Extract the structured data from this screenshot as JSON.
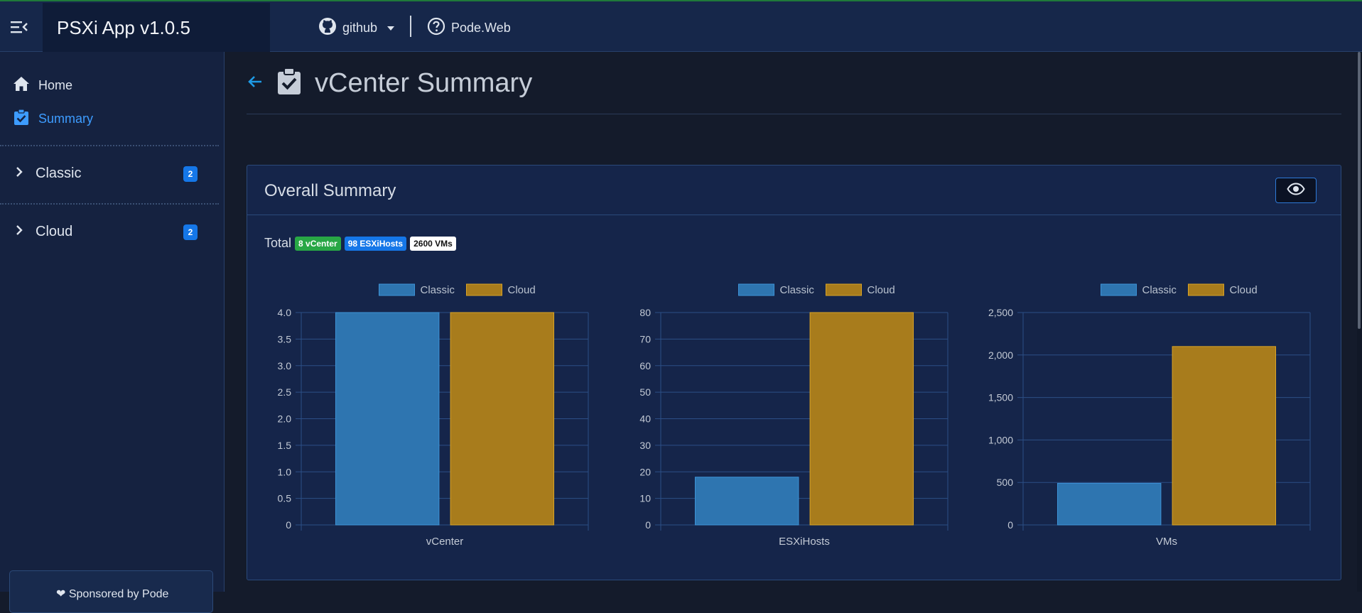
{
  "app": {
    "title": "PSXi App v1.0.5"
  },
  "navbar": {
    "links": [
      {
        "label": "github",
        "icon": "github-icon",
        "has_dropdown": true
      },
      {
        "label": "Pode.Web",
        "icon": "help-circle-icon"
      }
    ]
  },
  "sidebar": {
    "items": [
      {
        "label": "Home",
        "icon": "home-icon",
        "active": false
      },
      {
        "label": "Summary",
        "icon": "clipboard-check-icon",
        "active": true
      }
    ],
    "groups": [
      {
        "label": "Classic",
        "count": "2"
      },
      {
        "label": "Cloud",
        "count": "2"
      }
    ],
    "sponsor_text": "❤ Sponsored by Pode"
  },
  "page": {
    "title": "vCenter Summary",
    "back_icon": "arrow-left-icon",
    "title_icon": "clipboard-check-icon"
  },
  "card": {
    "title": "Overall Summary",
    "eye_icon": "eye-icon",
    "totals_label": "Total",
    "badges": [
      "8 vCenter",
      "98 ESXiHosts",
      "2600 VMs"
    ]
  },
  "colors": {
    "classic": "#2e75b0",
    "cloud": "#a87c1c",
    "accent": "#3d9cff"
  },
  "chart_data": [
    {
      "type": "bar",
      "categories": [
        "vCenter"
      ],
      "series": [
        {
          "name": "Classic",
          "values": [
            4
          ]
        },
        {
          "name": "Cloud",
          "values": [
            4
          ]
        }
      ],
      "ylim": [
        0,
        4
      ],
      "yticks": [
        "0",
        "0.5",
        "1.0",
        "1.5",
        "2.0",
        "2.5",
        "3.0",
        "3.5",
        "4.0"
      ],
      "ytick_values": [
        0,
        0.5,
        1,
        1.5,
        2,
        2.5,
        3,
        3.5,
        4
      ],
      "legend": "top",
      "grid": true
    },
    {
      "type": "bar",
      "categories": [
        "ESXiHosts"
      ],
      "series": [
        {
          "name": "Classic",
          "values": [
            18
          ]
        },
        {
          "name": "Cloud",
          "values": [
            80
          ]
        }
      ],
      "ylim": [
        0,
        80
      ],
      "yticks": [
        "0",
        "10",
        "20",
        "30",
        "40",
        "50",
        "60",
        "70",
        "80"
      ],
      "ytick_values": [
        0,
        10,
        20,
        30,
        40,
        50,
        60,
        70,
        80
      ],
      "legend": "top",
      "grid": true
    },
    {
      "type": "bar",
      "categories": [
        "VMs"
      ],
      "series": [
        {
          "name": "Classic",
          "values": [
            490
          ]
        },
        {
          "name": "Cloud",
          "values": [
            2100
          ]
        }
      ],
      "ylim": [
        0,
        2500
      ],
      "yticks": [
        "0",
        "500",
        "1,000",
        "1,500",
        "2,000",
        "2,500"
      ],
      "ytick_values": [
        0,
        500,
        1000,
        1500,
        2000,
        2500
      ],
      "legend": "top",
      "grid": true
    }
  ]
}
